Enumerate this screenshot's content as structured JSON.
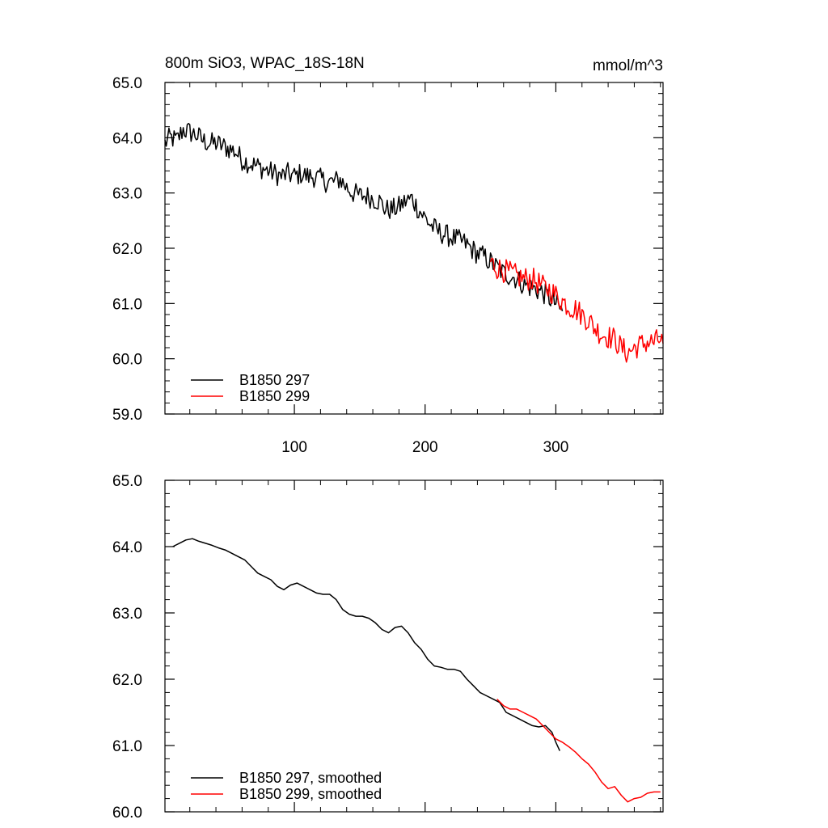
{
  "chart_data": [
    {
      "type": "line",
      "title": "800m SiO3, WPAC_18S-18N",
      "units": "mmol/m^3",
      "xlim": [
        1,
        382
      ],
      "ylim": [
        59.0,
        65.0
      ],
      "x_ticks": [
        100,
        200,
        300
      ],
      "x_tick_labels": [
        "100",
        "200",
        "300"
      ],
      "y_ticks": [
        59,
        60,
        61,
        62,
        63,
        64,
        65
      ],
      "y_tick_labels": [
        "59.0",
        "60.0",
        "61.0",
        "62.0",
        "63.0",
        "64.0",
        "65.0"
      ],
      "legend_position": "bottom-left",
      "series": [
        {
          "name": "B1850 297",
          "color": "#000000",
          "x": [
            1,
            5,
            10,
            15,
            20,
            25,
            30,
            35,
            40,
            45,
            50,
            55,
            60,
            65,
            70,
            75,
            80,
            85,
            90,
            95,
            100,
            105,
            110,
            115,
            120,
            125,
            130,
            135,
            140,
            145,
            150,
            155,
            160,
            165,
            170,
            175,
            180,
            185,
            190,
            195,
            200,
            205,
            210,
            215,
            220,
            225,
            230,
            235,
            240,
            245,
            250,
            255,
            260,
            265,
            270,
            275,
            280,
            285,
            290,
            295,
            300,
            305
          ],
          "values": [
            63.9,
            64.0,
            63.95,
            64.15,
            64.1,
            64.05,
            63.95,
            63.9,
            63.9,
            63.85,
            63.8,
            63.75,
            63.6,
            63.55,
            63.5,
            63.45,
            63.4,
            63.35,
            63.3,
            63.35,
            63.3,
            63.35,
            63.3,
            63.3,
            63.25,
            63.2,
            63.2,
            63.25,
            63.1,
            63.0,
            62.95,
            62.95,
            62.9,
            62.85,
            62.7,
            62.7,
            62.75,
            62.85,
            62.9,
            62.7,
            62.55,
            62.4,
            62.3,
            62.25,
            62.2,
            62.15,
            62.1,
            62.0,
            61.9,
            61.85,
            61.75,
            61.65,
            61.55,
            61.5,
            61.45,
            61.35,
            61.3,
            61.25,
            61.2,
            61.1,
            61.0,
            60.85
          ],
          "noise_amplitude": 0.2
        },
        {
          "name": "B1850 299",
          "color": "#ff0000",
          "x": [
            250,
            255,
            260,
            265,
            270,
            275,
            280,
            285,
            290,
            295,
            300,
            305,
            310,
            315,
            320,
            325,
            330,
            335,
            340,
            345,
            350,
            355,
            360,
            365,
            370,
            375,
            380,
            382
          ],
          "values": [
            61.75,
            61.65,
            61.6,
            61.55,
            61.5,
            61.45,
            61.45,
            61.4,
            61.3,
            61.25,
            61.15,
            61.05,
            60.95,
            60.9,
            60.8,
            60.7,
            60.55,
            60.45,
            60.4,
            60.35,
            60.2,
            60.1,
            60.2,
            60.25,
            60.3,
            60.3,
            60.35,
            60.25
          ],
          "noise_amplitude": 0.22
        }
      ]
    },
    {
      "type": "line",
      "xlim": [
        1,
        382
      ],
      "ylim": [
        60.0,
        65.0
      ],
      "y_ticks": [
        60,
        61,
        62,
        63,
        64,
        65
      ],
      "y_tick_labels": [
        "60.0",
        "61.0",
        "62.0",
        "63.0",
        "64.0",
        "65.0"
      ],
      "legend_position": "bottom-left",
      "series": [
        {
          "name": "B1850 297, smoothed",
          "color": "#000000",
          "x": [
            7,
            12,
            17,
            22,
            27,
            32,
            37,
            42,
            47,
            52,
            57,
            62,
            67,
            72,
            77,
            82,
            87,
            92,
            97,
            102,
            107,
            112,
            117,
            122,
            127,
            132,
            137,
            142,
            147,
            152,
            157,
            162,
            167,
            172,
            177,
            182,
            187,
            192,
            197,
            202,
            207,
            212,
            217,
            222,
            227,
            232,
            237,
            242,
            247,
            252,
            257,
            262,
            267,
            272,
            277,
            282,
            287,
            292,
            297,
            300,
            303
          ],
          "values": [
            64.0,
            64.05,
            64.1,
            64.12,
            64.08,
            64.05,
            64.02,
            63.98,
            63.95,
            63.9,
            63.85,
            63.8,
            63.7,
            63.6,
            63.55,
            63.5,
            63.4,
            63.35,
            63.42,
            63.45,
            63.4,
            63.35,
            63.3,
            63.28,
            63.28,
            63.2,
            63.05,
            62.98,
            62.95,
            62.95,
            62.92,
            62.85,
            62.75,
            62.7,
            62.78,
            62.8,
            62.7,
            62.55,
            62.45,
            62.3,
            62.2,
            62.18,
            62.15,
            62.15,
            62.12,
            62.0,
            61.9,
            61.8,
            61.75,
            61.7,
            61.65,
            61.5,
            61.45,
            61.4,
            61.35,
            61.3,
            61.28,
            61.3,
            61.2,
            61.05,
            60.92
          ]
        },
        {
          "name": "B1850 299, smoothed",
          "color": "#ff0000",
          "x": [
            255,
            260,
            265,
            270,
            275,
            280,
            285,
            290,
            295,
            300,
            305,
            310,
            315,
            320,
            325,
            330,
            335,
            340,
            345,
            350,
            355,
            360,
            365,
            370,
            375,
            380
          ],
          "values": [
            61.7,
            61.6,
            61.55,
            61.55,
            61.5,
            61.45,
            61.4,
            61.3,
            61.2,
            61.1,
            61.05,
            60.98,
            60.9,
            60.8,
            60.72,
            60.6,
            60.45,
            60.35,
            60.38,
            60.25,
            60.15,
            60.2,
            60.22,
            60.28,
            60.3,
            60.3
          ]
        }
      ]
    }
  ]
}
